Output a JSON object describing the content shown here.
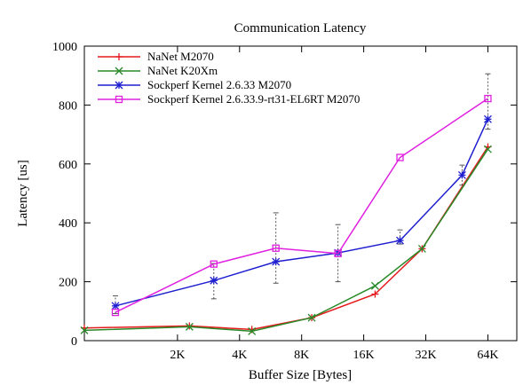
{
  "chart_data": {
    "type": "line",
    "title": "Communication Latency",
    "xlabel": "Buffer Size [Bytes]",
    "ylabel": "Latency [us]",
    "x_scale": "log2",
    "x_ticks": [
      {
        "value": 2048,
        "label": "2K"
      },
      {
        "value": 4096,
        "label": "4K"
      },
      {
        "value": 8192,
        "label": "8K"
      },
      {
        "value": 16384,
        "label": "16K"
      },
      {
        "value": 32768,
        "label": "32K"
      },
      {
        "value": 65536,
        "label": "64K"
      }
    ],
    "xlim": [
      724,
      90510
    ],
    "ylim": [
      0,
      1000
    ],
    "y_ticks": [
      0,
      200,
      400,
      600,
      800,
      1000
    ],
    "grid": false,
    "legend_position": "top-left",
    "series": [
      {
        "name": "NaNet M2070",
        "color": "#e41a1c",
        "marker": "plus",
        "points": [
          [
            724,
            43
          ],
          [
            2341,
            50
          ],
          [
            4700,
            38
          ],
          [
            9168,
            78
          ],
          [
            18600,
            158
          ],
          [
            31450,
            312
          ],
          [
            65536,
            658
          ]
        ]
      },
      {
        "name": "NaNet K20Xm",
        "color": "#2a8a2a",
        "marker": "cross",
        "points": [
          [
            724,
            35
          ],
          [
            2341,
            47
          ],
          [
            4700,
            32
          ],
          [
            9168,
            78
          ],
          [
            18600,
            186
          ],
          [
            31450,
            312
          ],
          [
            65536,
            650
          ]
        ]
      },
      {
        "name": "Sockperf Kernel 2.6.33 M2070",
        "color": "#1f1fd0",
        "marker": "star",
        "points": [
          [
            1024,
            118
          ],
          [
            3072,
            204
          ],
          [
            6144,
            268
          ],
          [
            12288,
            298
          ],
          [
            24576,
            340
          ],
          [
            49152,
            562
          ],
          [
            65536,
            752
          ]
        ]
      },
      {
        "name": "Sockperf Kernel 2.6.33.9-rt31-EL6RT M2070",
        "color": "#e020e0",
        "marker": "square",
        "points": [
          [
            1024,
            96
          ],
          [
            3072,
            260
          ],
          [
            6144,
            314
          ],
          [
            12288,
            296
          ],
          [
            24576,
            622
          ],
          [
            65536,
            822
          ]
        ]
      }
    ],
    "error_bars": [
      {
        "x": 1024,
        "low": 92,
        "high": 152
      },
      {
        "x": 3072,
        "low": 142,
        "high": 262
      },
      {
        "x": 6144,
        "low": 195,
        "high": 434
      },
      {
        "x": 12288,
        "low": 200,
        "high": 394
      },
      {
        "x": 24576,
        "low": 328,
        "high": 376
      },
      {
        "x": 49152,
        "low": 528,
        "high": 596
      },
      {
        "x": 65536,
        "low": 718,
        "high": 906
      }
    ]
  }
}
